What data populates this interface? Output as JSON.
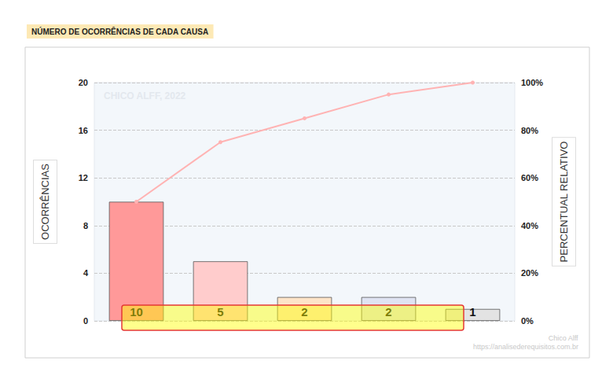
{
  "chart_data": {
    "type": "bar",
    "title": "NÚMERO DE OCORRÊNCIAS DE CADA CAUSA",
    "y_label": "OCORRÊNCIAS",
    "y2_label": "PERCENTUAL RELATIVO",
    "annotations": [
      "CHICO ALFF, 2022",
      "Chico Alff",
      "https://analisederequisitos.com.br"
    ],
    "categories": [
      null,
      null,
      null,
      null,
      null
    ],
    "series": [
      {
        "type": "bar",
        "values": [
          10,
          5,
          2,
          2,
          1
        ],
        "colors": [
          "#ff9999",
          "#ffcccc",
          "#fde4c8",
          "#dfe3f2",
          "#e3e3e3"
        ],
        "data_labels": true
      },
      {
        "type": "line",
        "axis": "y2",
        "values": [
          50,
          75,
          85,
          95,
          100
        ],
        "color": "#ffb3b3",
        "marker": "circle"
      }
    ],
    "ylim": [
      0,
      20
    ],
    "yticks": [
      0,
      4,
      8,
      12,
      16,
      20
    ],
    "y2lim": [
      0,
      100
    ],
    "y2ticks": [
      {
        "value": 0,
        "label": "0%"
      },
      {
        "value": 20,
        "label": "20%"
      },
      {
        "value": 40,
        "label": "40%"
      },
      {
        "value": 60,
        "label": "60%"
      },
      {
        "value": 80,
        "label": "80%"
      },
      {
        "value": 100,
        "label": "100%"
      }
    ],
    "grid": true
  }
}
